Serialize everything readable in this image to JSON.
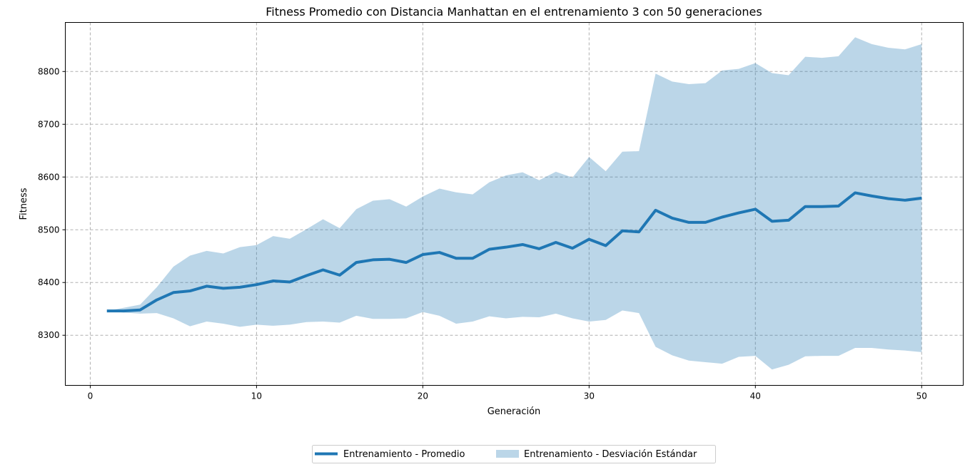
{
  "chart_data": {
    "type": "line",
    "title": "Fitness Promedio con Distancia Manhattan en el entrenamiento 3 con 50 generaciones",
    "xlabel": "Generación",
    "ylabel": "Fitness",
    "xlim": [
      -1.5,
      52.5
    ],
    "ylim": [
      8205,
      8893
    ],
    "xticks": [
      0,
      10,
      20,
      30,
      40,
      50
    ],
    "yticks": [
      8300,
      8400,
      8500,
      8600,
      8700,
      8800
    ],
    "grid": true,
    "legend_position": "bottom-center",
    "x": [
      1,
      2,
      3,
      4,
      5,
      6,
      7,
      8,
      9,
      10,
      11,
      12,
      13,
      14,
      15,
      16,
      17,
      18,
      19,
      20,
      21,
      22,
      23,
      24,
      25,
      26,
      27,
      28,
      29,
      30,
      31,
      32,
      33,
      34,
      35,
      36,
      37,
      38,
      39,
      40,
      41,
      42,
      43,
      44,
      45,
      46,
      47,
      48,
      49,
      50
    ],
    "series": [
      {
        "name": "Entrenamiento  - Promedio",
        "kind": "line",
        "color": "#1f77b4",
        "values": [
          8346,
          8346,
          8348,
          8367,
          8381,
          8384,
          8393,
          8389,
          8391,
          8396,
          8403,
          8401,
          8413,
          8424,
          8414,
          8438,
          8443,
          8444,
          8438,
          8453,
          8457,
          8446,
          8446,
          8463,
          8467,
          8472,
          8464,
          8476,
          8465,
          8482,
          8470,
          8498,
          8496,
          8537,
          8522,
          8514,
          8514,
          8524,
          8532,
          8539,
          8516,
          8518,
          8544,
          8544,
          8545,
          8570,
          8564,
          8559,
          8556,
          8560
        ]
      },
      {
        "name": "Entrenamiento  - Desviación Estándar",
        "kind": "band",
        "color": "#1f77b4",
        "opacity": 0.3,
        "upper": [
          8346,
          8352,
          8358,
          8391,
          8430,
          8451,
          8460,
          8455,
          8467,
          8471,
          8488,
          8483,
          8501,
          8520,
          8503,
          8539,
          8555,
          8558,
          8544,
          8563,
          8578,
          8571,
          8567,
          8590,
          8603,
          8609,
          8594,
          8610,
          8599,
          8638,
          8611,
          8648,
          8649,
          8796,
          8781,
          8776,
          8778,
          8802,
          8805,
          8816,
          8797,
          8793,
          8828,
          8826,
          8829,
          8865,
          8852,
          8845,
          8842,
          8852
        ],
        "lower": [
          8346,
          8343,
          8341,
          8342,
          8332,
          8317,
          8326,
          8322,
          8316,
          8320,
          8318,
          8320,
          8325,
          8326,
          8324,
          8337,
          8331,
          8331,
          8332,
          8344,
          8337,
          8322,
          8326,
          8336,
          8332,
          8335,
          8334,
          8341,
          8332,
          8326,
          8329,
          8347,
          8342,
          8278,
          8262,
          8252,
          8249,
          8246,
          8259,
          8261,
          8235,
          8244,
          8260,
          8261,
          8261,
          8276,
          8276,
          8273,
          8271,
          8268
        ]
      }
    ]
  }
}
